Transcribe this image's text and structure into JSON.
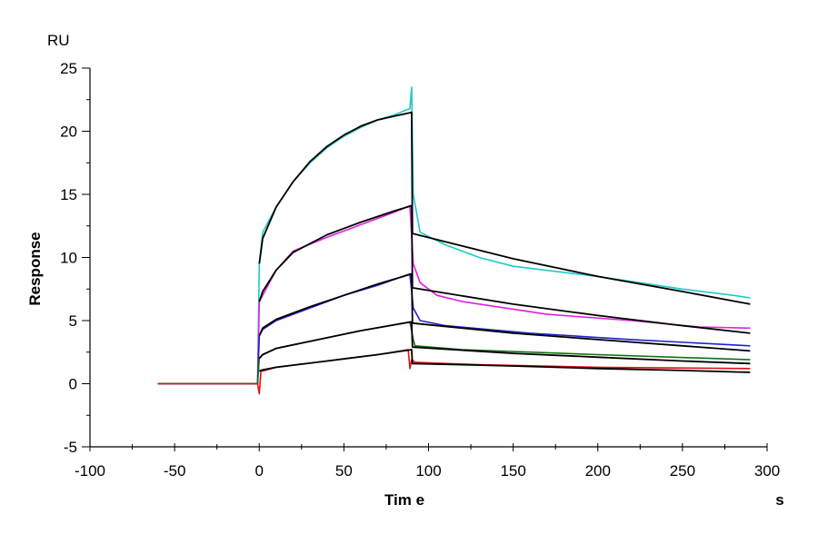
{
  "chart_data": {
    "type": "line",
    "title": "",
    "xlabel": "Tim e",
    "xunit": "s",
    "ylabel": "Response",
    "yunit": "RU",
    "xlim": [
      -100,
      300
    ],
    "ylim": [
      -5,
      25
    ],
    "xticks": [
      "-100",
      "-50",
      "0",
      "50",
      "100",
      "150",
      "200",
      "250",
      "300"
    ],
    "yticks": [
      "-5",
      "0",
      "5",
      "10",
      "15",
      "20",
      "25"
    ],
    "grid": false,
    "series": [
      {
        "color": "#1fc8c8",
        "kind": "measured",
        "x": [
          -60,
          -1,
          0,
          2,
          10,
          20,
          30,
          40,
          50,
          60,
          70,
          80,
          89,
          90,
          91,
          95,
          110,
          130,
          150,
          200,
          250,
          280,
          290
        ],
        "y": [
          0,
          0,
          9.5,
          12,
          14,
          16,
          17.5,
          18.7,
          19.6,
          20.3,
          20.9,
          21.3,
          21.8,
          23.5,
          15,
          12,
          11,
          10,
          9.3,
          8.5,
          7.5,
          7,
          6.8
        ]
      },
      {
        "color": "#000000",
        "kind": "fit",
        "x": [
          0,
          2,
          10,
          20,
          30,
          40,
          50,
          60,
          70,
          80,
          90,
          90.5,
          150,
          200,
          250,
          290
        ],
        "y": [
          9.5,
          11.5,
          14,
          16,
          17.6,
          18.8,
          19.7,
          20.4,
          20.9,
          21.2,
          21.5,
          11.9,
          9.9,
          8.5,
          7.3,
          6.3
        ]
      },
      {
        "color": "#e020e0",
        "kind": "measured",
        "x": [
          -60,
          -1,
          0,
          2,
          10,
          20,
          40,
          60,
          80,
          89,
          91,
          95,
          105,
          120,
          170,
          220,
          260,
          290
        ],
        "y": [
          0,
          0,
          6.5,
          7,
          9,
          10.5,
          11.6,
          12.6,
          13.6,
          14.1,
          9.5,
          8,
          7,
          6.5,
          5.5,
          5,
          4.5,
          4.4
        ]
      },
      {
        "color": "#000000",
        "kind": "fit",
        "x": [
          0,
          2,
          10,
          20,
          40,
          60,
          80,
          90,
          90.5,
          150,
          200,
          250,
          290
        ],
        "y": [
          6.5,
          7.3,
          9,
          10.4,
          11.8,
          12.8,
          13.7,
          14.1,
          7.6,
          6.3,
          5.4,
          4.6,
          4.0
        ]
      },
      {
        "color": "#2020d0",
        "kind": "measured",
        "x": [
          -60,
          -1,
          0,
          2,
          10,
          30,
          50,
          70,
          89,
          91,
          95,
          110,
          160,
          220,
          290
        ],
        "y": [
          0,
          0,
          3.8,
          4.3,
          5,
          6,
          7,
          7.8,
          8.7,
          6,
          5,
          4.6,
          4,
          3.5,
          3.0
        ]
      },
      {
        "color": "#000000",
        "kind": "fit",
        "x": [
          0,
          2,
          10,
          30,
          50,
          70,
          90,
          90.5,
          150,
          200,
          250,
          290
        ],
        "y": [
          3.8,
          4.4,
          5.1,
          6.1,
          7,
          7.9,
          8.7,
          4.8,
          4.0,
          3.5,
          3.0,
          2.6
        ]
      },
      {
        "color": "#107010",
        "kind": "measured",
        "x": [
          -60,
          -1,
          0,
          2,
          10,
          35,
          60,
          89,
          91,
          92,
          120,
          200,
          290
        ],
        "y": [
          0,
          0,
          2,
          2.3,
          2.8,
          3.5,
          4.2,
          4.9,
          3.5,
          3.0,
          2.7,
          2.3,
          1.9
        ]
      },
      {
        "color": "#000000",
        "kind": "fit",
        "x": [
          0,
          2,
          10,
          35,
          60,
          90,
          90.5,
          150,
          200,
          250,
          290
        ],
        "y": [
          2,
          2.3,
          2.8,
          3.5,
          4.2,
          4.9,
          2.9,
          2.4,
          2.1,
          1.8,
          1.6
        ]
      },
      {
        "color": "#e01010",
        "kind": "measured",
        "x": [
          -60,
          -1,
          0,
          1,
          2,
          10,
          40,
          70,
          88,
          89,
          90,
          92,
          130,
          200,
          290
        ],
        "y": [
          0,
          0,
          -0.8,
          1,
          1,
          1.3,
          1.8,
          2.3,
          2.7,
          1.2,
          1.9,
          1.7,
          1.5,
          1.3,
          1.2
        ]
      },
      {
        "color": "#000000",
        "kind": "fit",
        "x": [
          0,
          2,
          10,
          40,
          70,
          90,
          90.5,
          150,
          200,
          250,
          290
        ],
        "y": [
          1,
          1.1,
          1.3,
          1.8,
          2.3,
          2.7,
          1.6,
          1.4,
          1.2,
          1.05,
          0.9
        ]
      }
    ]
  }
}
